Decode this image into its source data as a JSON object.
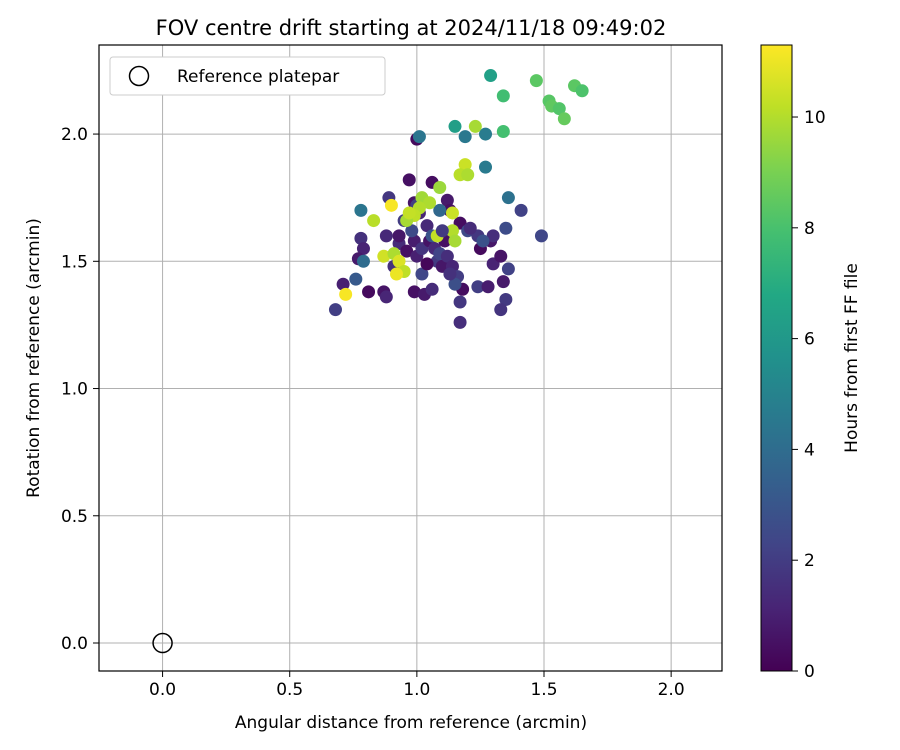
{
  "chart_data": {
    "type": "scatter",
    "title": "FOV centre drift starting at 2024/11/18 09:49:02",
    "xlabel": "Angular distance from reference (arcmin)",
    "ylabel": "Rotation from reference (arcmin)",
    "xlim": [
      -0.25,
      2.2
    ],
    "ylim": [
      -0.11,
      2.35
    ],
    "xticks": [
      0.0,
      0.5,
      1.0,
      1.5,
      2.0
    ],
    "yticks": [
      0.0,
      0.5,
      1.0,
      1.5,
      2.0
    ],
    "xtick_labels": [
      "0.0",
      "0.5",
      "1.0",
      "1.5",
      "2.0"
    ],
    "ytick_labels": [
      "0.0",
      "0.5",
      "1.0",
      "1.5",
      "2.0"
    ],
    "grid": true,
    "colormap": "viridis",
    "colorbar": {
      "label": "Hours from first FF file",
      "range": [
        0,
        11.3
      ],
      "ticks": [
        0,
        2,
        4,
        6,
        8,
        10
      ],
      "tick_labels": [
        "0",
        "2",
        "4",
        "6",
        "8",
        "10"
      ]
    },
    "legend": {
      "position": "top-left",
      "entries": [
        "Reference platepar"
      ]
    },
    "reference_point": {
      "x": 0.0,
      "y": 0.0
    },
    "series": [
      {
        "points": [
          {
            "x": 1.0,
            "y": 1.98,
            "h": 0.3
          },
          {
            "x": 0.97,
            "y": 1.82,
            "h": 0.5
          },
          {
            "x": 1.06,
            "y": 1.81,
            "h": 0.4
          },
          {
            "x": 0.89,
            "y": 1.75,
            "h": 1.8
          },
          {
            "x": 0.99,
            "y": 1.73,
            "h": 0.6
          },
          {
            "x": 1.01,
            "y": 1.69,
            "h": 1.2
          },
          {
            "x": 1.12,
            "y": 1.74,
            "h": 0.8
          },
          {
            "x": 1.13,
            "y": 1.7,
            "h": 0.5
          },
          {
            "x": 0.95,
            "y": 1.66,
            "h": 2.0
          },
          {
            "x": 1.04,
            "y": 1.64,
            "h": 1.3
          },
          {
            "x": 1.17,
            "y": 1.65,
            "h": 0.4
          },
          {
            "x": 1.2,
            "y": 1.62,
            "h": 2.5
          },
          {
            "x": 1.24,
            "y": 1.6,
            "h": 1.8
          },
          {
            "x": 1.29,
            "y": 1.58,
            "h": 0.7
          },
          {
            "x": 1.3,
            "y": 1.6,
            "h": 1.5
          },
          {
            "x": 1.35,
            "y": 1.63,
            "h": 2.6
          },
          {
            "x": 1.41,
            "y": 1.7,
            "h": 2.2
          },
          {
            "x": 1.49,
            "y": 1.6,
            "h": 2.4
          },
          {
            "x": 0.78,
            "y": 1.59,
            "h": 1.6
          },
          {
            "x": 0.79,
            "y": 1.55,
            "h": 1.1
          },
          {
            "x": 0.77,
            "y": 1.51,
            "h": 0.8
          },
          {
            "x": 0.93,
            "y": 1.57,
            "h": 1.4
          },
          {
            "x": 0.96,
            "y": 1.54,
            "h": 0.5
          },
          {
            "x": 0.99,
            "y": 1.58,
            "h": 0.9
          },
          {
            "x": 1.0,
            "y": 1.52,
            "h": 1.0
          },
          {
            "x": 1.02,
            "y": 1.55,
            "h": 1.7
          },
          {
            "x": 1.05,
            "y": 1.58,
            "h": 0.6
          },
          {
            "x": 1.07,
            "y": 1.55,
            "h": 1.3
          },
          {
            "x": 1.08,
            "y": 1.5,
            "h": 1.9
          },
          {
            "x": 1.09,
            "y": 1.53,
            "h": 2.3
          },
          {
            "x": 1.1,
            "y": 1.48,
            "h": 0.7
          },
          {
            "x": 1.12,
            "y": 1.52,
            "h": 1.5
          },
          {
            "x": 1.14,
            "y": 1.48,
            "h": 1.2
          },
          {
            "x": 1.16,
            "y": 1.44,
            "h": 2.0
          },
          {
            "x": 1.18,
            "y": 1.39,
            "h": 0.4
          },
          {
            "x": 1.17,
            "y": 1.34,
            "h": 1.8
          },
          {
            "x": 1.17,
            "y": 1.26,
            "h": 1.5
          },
          {
            "x": 1.25,
            "y": 1.55,
            "h": 0.3
          },
          {
            "x": 1.24,
            "y": 1.4,
            "h": 2.1
          },
          {
            "x": 1.28,
            "y": 1.4,
            "h": 0.9
          },
          {
            "x": 1.3,
            "y": 1.49,
            "h": 1.1
          },
          {
            "x": 1.33,
            "y": 1.52,
            "h": 0.6
          },
          {
            "x": 1.36,
            "y": 1.47,
            "h": 2.2
          },
          {
            "x": 1.34,
            "y": 1.42,
            "h": 0.8
          },
          {
            "x": 1.35,
            "y": 1.35,
            "h": 1.9
          },
          {
            "x": 1.33,
            "y": 1.31,
            "h": 1.7
          },
          {
            "x": 0.68,
            "y": 1.31,
            "h": 2.1
          },
          {
            "x": 0.71,
            "y": 1.41,
            "h": 1.0
          },
          {
            "x": 0.76,
            "y": 1.43,
            "h": 3.2
          },
          {
            "x": 0.81,
            "y": 1.38,
            "h": 0.3
          },
          {
            "x": 0.87,
            "y": 1.38,
            "h": 0.6
          },
          {
            "x": 0.88,
            "y": 1.36,
            "h": 1.2
          },
          {
            "x": 0.91,
            "y": 1.48,
            "h": 1.6
          },
          {
            "x": 0.99,
            "y": 1.38,
            "h": 0.5
          },
          {
            "x": 1.03,
            "y": 1.37,
            "h": 0.8
          },
          {
            "x": 1.06,
            "y": 1.39,
            "h": 1.4
          },
          {
            "x": 1.02,
            "y": 1.45,
            "h": 2.4
          },
          {
            "x": 1.04,
            "y": 1.49,
            "h": 0.2
          },
          {
            "x": 1.15,
            "y": 1.41,
            "h": 2.7
          },
          {
            "x": 1.13,
            "y": 1.45,
            "h": 1.6
          },
          {
            "x": 1.11,
            "y": 1.58,
            "h": 0.5
          },
          {
            "x": 1.06,
            "y": 1.6,
            "h": 2.9
          },
          {
            "x": 0.98,
            "y": 1.62,
            "h": 2.5
          },
          {
            "x": 1.01,
            "y": 1.99,
            "h": 4.4
          },
          {
            "x": 1.19,
            "y": 1.99,
            "h": 4.5
          },
          {
            "x": 1.27,
            "y": 2.0,
            "h": 4.7
          },
          {
            "x": 1.27,
            "y": 1.87,
            "h": 4.6
          },
          {
            "x": 1.36,
            "y": 1.75,
            "h": 4.2
          },
          {
            "x": 0.78,
            "y": 1.7,
            "h": 4.4
          },
          {
            "x": 0.79,
            "y": 1.5,
            "h": 4.0
          },
          {
            "x": 1.09,
            "y": 1.7,
            "h": 3.8
          },
          {
            "x": 1.0,
            "y": 1.72,
            "h": 2.1
          },
          {
            "x": 1.15,
            "y": 2.03,
            "h": 6.3
          },
          {
            "x": 1.29,
            "y": 2.23,
            "h": 6.4
          },
          {
            "x": 1.34,
            "y": 2.15,
            "h": 7.8
          },
          {
            "x": 1.34,
            "y": 2.01,
            "h": 7.9
          },
          {
            "x": 1.47,
            "y": 2.21,
            "h": 8.4
          },
          {
            "x": 1.52,
            "y": 2.13,
            "h": 8.3
          },
          {
            "x": 1.53,
            "y": 2.11,
            "h": 8.5
          },
          {
            "x": 1.56,
            "y": 2.1,
            "h": 8.2
          },
          {
            "x": 1.58,
            "y": 2.06,
            "h": 8.6
          },
          {
            "x": 1.62,
            "y": 2.19,
            "h": 8.4
          },
          {
            "x": 1.65,
            "y": 2.17,
            "h": 8.1
          },
          {
            "x": 1.23,
            "y": 2.03,
            "h": 9.8
          },
          {
            "x": 1.19,
            "y": 1.88,
            "h": 10.4
          },
          {
            "x": 1.17,
            "y": 1.84,
            "h": 10.1
          },
          {
            "x": 1.2,
            "y": 1.84,
            "h": 9.9
          },
          {
            "x": 1.09,
            "y": 1.79,
            "h": 9.6
          },
          {
            "x": 1.02,
            "y": 1.75,
            "h": 9.7
          },
          {
            "x": 1.05,
            "y": 1.73,
            "h": 9.9
          },
          {
            "x": 1.01,
            "y": 1.71,
            "h": 10.0
          },
          {
            "x": 0.99,
            "y": 1.68,
            "h": 10.2
          },
          {
            "x": 0.96,
            "y": 1.66,
            "h": 9.8
          },
          {
            "x": 0.97,
            "y": 1.69,
            "h": 10.3
          },
          {
            "x": 0.83,
            "y": 1.66,
            "h": 10.1
          },
          {
            "x": 0.9,
            "y": 1.72,
            "h": 11.2
          },
          {
            "x": 1.14,
            "y": 1.69,
            "h": 10.4
          },
          {
            "x": 1.14,
            "y": 1.62,
            "h": 10.0
          },
          {
            "x": 1.15,
            "y": 1.58,
            "h": 9.8
          },
          {
            "x": 1.08,
            "y": 1.6,
            "h": 10.3
          },
          {
            "x": 0.87,
            "y": 1.52,
            "h": 10.5
          },
          {
            "x": 0.91,
            "y": 1.53,
            "h": 9.9
          },
          {
            "x": 0.93,
            "y": 1.5,
            "h": 10.7
          },
          {
            "x": 0.95,
            "y": 1.46,
            "h": 10.2
          },
          {
            "x": 0.92,
            "y": 1.45,
            "h": 11.0
          },
          {
            "x": 0.72,
            "y": 1.37,
            "h": 11.2
          },
          {
            "x": 0.88,
            "y": 1.6,
            "h": 1.3
          },
          {
            "x": 1.21,
            "y": 1.63,
            "h": 1.4
          },
          {
            "x": 0.93,
            "y": 1.6,
            "h": 0.7
          },
          {
            "x": 1.1,
            "y": 1.62,
            "h": 1.9
          },
          {
            "x": 1.26,
            "y": 1.58,
            "h": 2.8
          }
        ]
      }
    ]
  }
}
